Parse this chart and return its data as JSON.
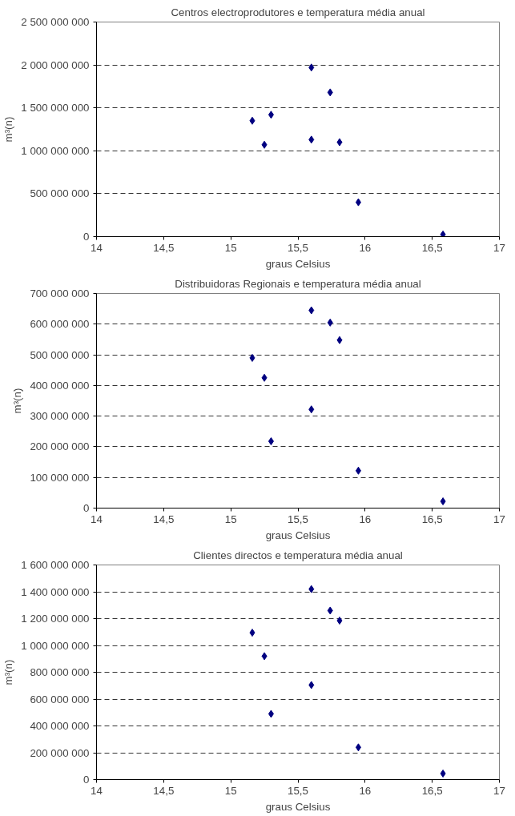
{
  "chart_data": [
    {
      "type": "scatter",
      "title": "Centros electroprodutores e temperatura média anual",
      "xlabel": "graus Celsius",
      "ylabel": "m³(n)",
      "x": [
        15.16,
        15.25,
        15.3,
        15.6,
        15.6,
        15.74,
        15.81,
        15.95,
        16.58
      ],
      "series": [
        {
          "color": "#000080",
          "values": [
            1350000000,
            1070000000,
            1420000000,
            1970000000,
            1130000000,
            1680000000,
            1100000000,
            400000000,
            25000000
          ]
        }
      ],
      "xlim": [
        14,
        17
      ],
      "xticks": [
        14,
        {
          "value": 14.5,
          "label": "14,5"
        },
        15,
        {
          "value": 15.5,
          "label": "15,5"
        },
        16,
        {
          "value": 16.5,
          "label": "16,5"
        },
        17
      ],
      "ylim": [
        0,
        2500000000
      ],
      "yticks": [
        0,
        {
          "value": 500000000,
          "label": "500 000 000"
        },
        {
          "value": 1000000000,
          "label": "1 000 000 000"
        },
        {
          "value": 1500000000,
          "label": "1 500 000 000"
        },
        {
          "value": 2000000000,
          "label": "2 000 000 000"
        },
        {
          "value": 2500000000,
          "label": "2 500 000 000"
        }
      ],
      "grid": "y",
      "marker": "diamond"
    },
    {
      "type": "scatter",
      "title": "Distribuidoras Regionais e temperatura média anual",
      "xlabel": "graus Celsius",
      "ylabel": "m³(n)",
      "x": [
        15.16,
        15.25,
        15.3,
        15.6,
        15.6,
        15.74,
        15.81,
        15.95,
        16.58
      ],
      "series": [
        {
          "color": "#000080",
          "values": [
            490000000,
            425000000,
            218000000,
            645000000,
            322000000,
            605000000,
            548000000,
            122000000,
            22000000
          ]
        }
      ],
      "xlim": [
        14,
        17
      ],
      "xticks": [
        14,
        {
          "value": 14.5,
          "label": "14,5"
        },
        15,
        {
          "value": 15.5,
          "label": "15,5"
        },
        16,
        {
          "value": 16.5,
          "label": "16,5"
        },
        17
      ],
      "ylim": [
        0,
        700000000
      ],
      "yticks": [
        0,
        {
          "value": 100000000,
          "label": "100 000 000"
        },
        {
          "value": 200000000,
          "label": "200 000 000"
        },
        {
          "value": 300000000,
          "label": "300 000 000"
        },
        {
          "value": 400000000,
          "label": "400 000 000"
        },
        {
          "value": 500000000,
          "label": "500 000 000"
        },
        {
          "value": 600000000,
          "label": "600 000 000"
        },
        {
          "value": 700000000,
          "label": "700 000 000"
        }
      ],
      "grid": "y",
      "marker": "diamond"
    },
    {
      "type": "scatter",
      "title": "Clientes directos e temperatura média anual",
      "xlabel": "graus Celsius",
      "ylabel": "m³(n)",
      "x": [
        15.16,
        15.25,
        15.3,
        15.6,
        15.6,
        15.74,
        15.81,
        15.95,
        16.58
      ],
      "series": [
        {
          "color": "#000080",
          "values": [
            1095000000,
            920000000,
            490000000,
            1420000000,
            705000000,
            1260000000,
            1185000000,
            240000000,
            45000000
          ]
        }
      ],
      "xlim": [
        14,
        17
      ],
      "xticks": [
        14,
        {
          "value": 14.5,
          "label": "14,5"
        },
        15,
        {
          "value": 15.5,
          "label": "15,5"
        },
        16,
        {
          "value": 16.5,
          "label": "16,5"
        },
        17
      ],
      "ylim": [
        0,
        1600000000
      ],
      "yticks": [
        0,
        {
          "value": 200000000,
          "label": "200 000 000"
        },
        {
          "value": 400000000,
          "label": "400 000 000"
        },
        {
          "value": 600000000,
          "label": "600 000 000"
        },
        {
          "value": 800000000,
          "label": "800 000 000"
        },
        {
          "value": 1000000000,
          "label": "1 000 000 000"
        },
        {
          "value": 1200000000,
          "label": "1 200 000 000"
        },
        {
          "value": 1400000000,
          "label": "1 400 000 000"
        },
        {
          "value": 1600000000,
          "label": "1 600 000 000"
        }
      ],
      "grid": "y",
      "marker": "diamond"
    }
  ]
}
